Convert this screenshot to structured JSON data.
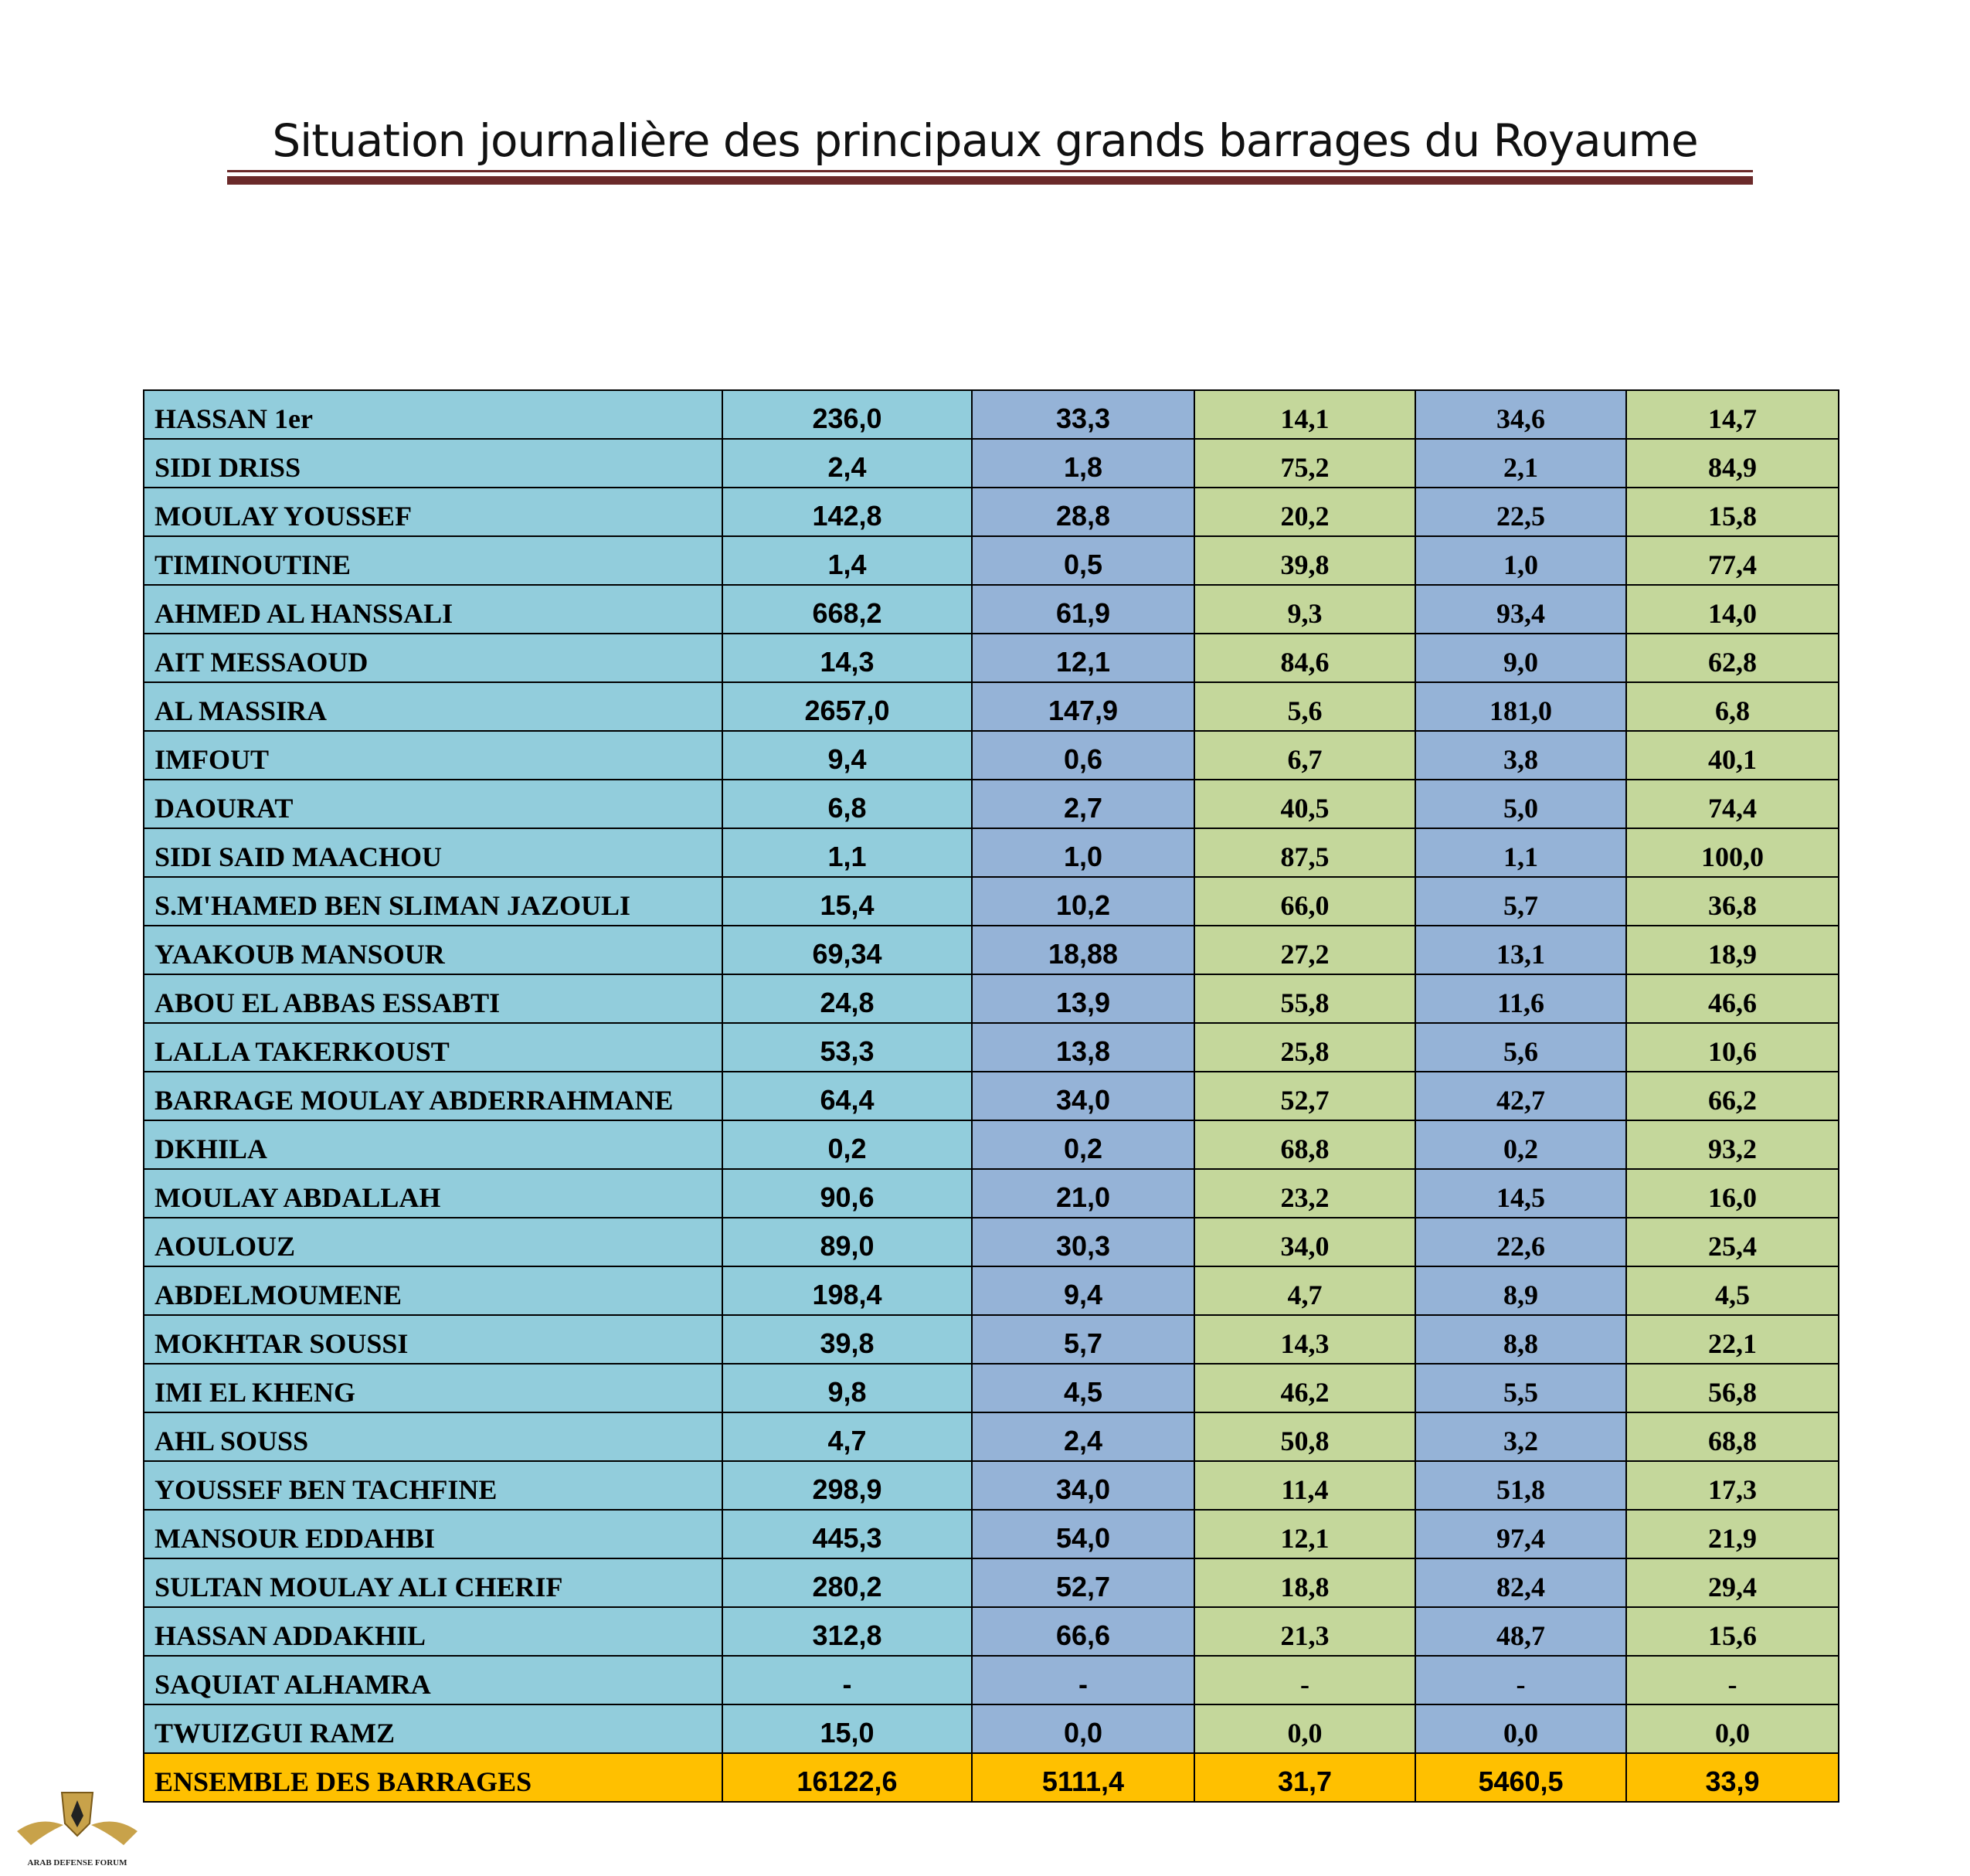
{
  "header": {
    "title": "Situation journalière des principaux grands barrages du Royaume"
  },
  "table": {
    "rows": [
      [
        "HASSAN 1er",
        "236,0",
        "33,3",
        "14,1",
        "34,6",
        "14,7"
      ],
      [
        "SIDI DRISS",
        "2,4",
        "1,8",
        "75,2",
        "2,1",
        "84,9"
      ],
      [
        "MOULAY YOUSSEF",
        "142,8",
        "28,8",
        "20,2",
        "22,5",
        "15,8"
      ],
      [
        "TIMINOUTINE",
        "1,4",
        "0,5",
        "39,8",
        "1,0",
        "77,4"
      ],
      [
        "AHMED AL HANSSALI",
        "668,2",
        "61,9",
        "9,3",
        "93,4",
        "14,0"
      ],
      [
        "AIT MESSAOUD",
        "14,3",
        "12,1",
        "84,6",
        "9,0",
        "62,8"
      ],
      [
        "AL MASSIRA",
        "2657,0",
        "147,9",
        "5,6",
        "181,0",
        "6,8"
      ],
      [
        "IMFOUT",
        "9,4",
        "0,6",
        "6,7",
        "3,8",
        "40,1"
      ],
      [
        "DAOURAT",
        "6,8",
        "2,7",
        "40,5",
        "5,0",
        "74,4"
      ],
      [
        "SIDI SAID MAACHOU",
        "1,1",
        "1,0",
        "87,5",
        "1,1",
        "100,0"
      ],
      [
        "S.M'HAMED BEN SLIMAN JAZOULI",
        "15,4",
        "10,2",
        "66,0",
        "5,7",
        "36,8"
      ],
      [
        "YAAKOUB MANSOUR",
        "69,34",
        "18,88",
        "27,2",
        "13,1",
        "18,9"
      ],
      [
        "ABOU EL ABBAS ESSABTI",
        "24,8",
        "13,9",
        "55,8",
        "11,6",
        "46,6"
      ],
      [
        "LALLA TAKERKOUST",
        "53,3",
        "13,8",
        "25,8",
        "5,6",
        "10,6"
      ],
      [
        "BARRAGE MOULAY ABDERRAHMANE",
        "64,4",
        "34,0",
        "52,7",
        "42,7",
        "66,2"
      ],
      [
        "DKHILA",
        "0,2",
        "0,2",
        "68,8",
        "0,2",
        "93,2"
      ],
      [
        "MOULAY ABDALLAH",
        "90,6",
        "21,0",
        "23,2",
        "14,5",
        "16,0"
      ],
      [
        "AOULOUZ",
        "89,0",
        "30,3",
        "34,0",
        "22,6",
        "25,4"
      ],
      [
        "ABDELMOUMENE",
        "198,4",
        "9,4",
        "4,7",
        "8,9",
        "4,5"
      ],
      [
        "MOKHTAR SOUSSI",
        "39,8",
        "5,7",
        "14,3",
        "8,8",
        "22,1"
      ],
      [
        "IMI EL KHENG",
        "9,8",
        "4,5",
        "46,2",
        "5,5",
        "56,8"
      ],
      [
        "AHL SOUSS",
        "4,7",
        "2,4",
        "50,8",
        "3,2",
        "68,8"
      ],
      [
        "YOUSSEF BEN TACHFINE",
        "298,9",
        "34,0",
        "11,4",
        "51,8",
        "17,3"
      ],
      [
        "MANSOUR EDDAHBI",
        "445,3",
        "54,0",
        "12,1",
        "97,4",
        "21,9"
      ],
      [
        "SULTAN MOULAY ALI CHERIF",
        "280,2",
        "52,7",
        "18,8",
        "82,4",
        "29,4"
      ],
      [
        "HASSAN ADDAKHIL",
        "312,8",
        "66,6",
        "21,3",
        "48,7",
        "15,6"
      ],
      [
        "SAQUIAT ALHAMRA",
        "-",
        "-",
        "-",
        "-",
        "-"
      ],
      [
        "TWUIZGUI RAMZ",
        "15,0",
        "0,0",
        "0,0",
        "0,0",
        "0,0"
      ]
    ],
    "total": [
      "ENSEMBLE DES BARRAGES",
      "16122,6",
      "5111,4",
      "31,7",
      "5460,5",
      "33,9"
    ]
  },
  "logo": {
    "text": "ARAB DEFENSE FORUM"
  }
}
